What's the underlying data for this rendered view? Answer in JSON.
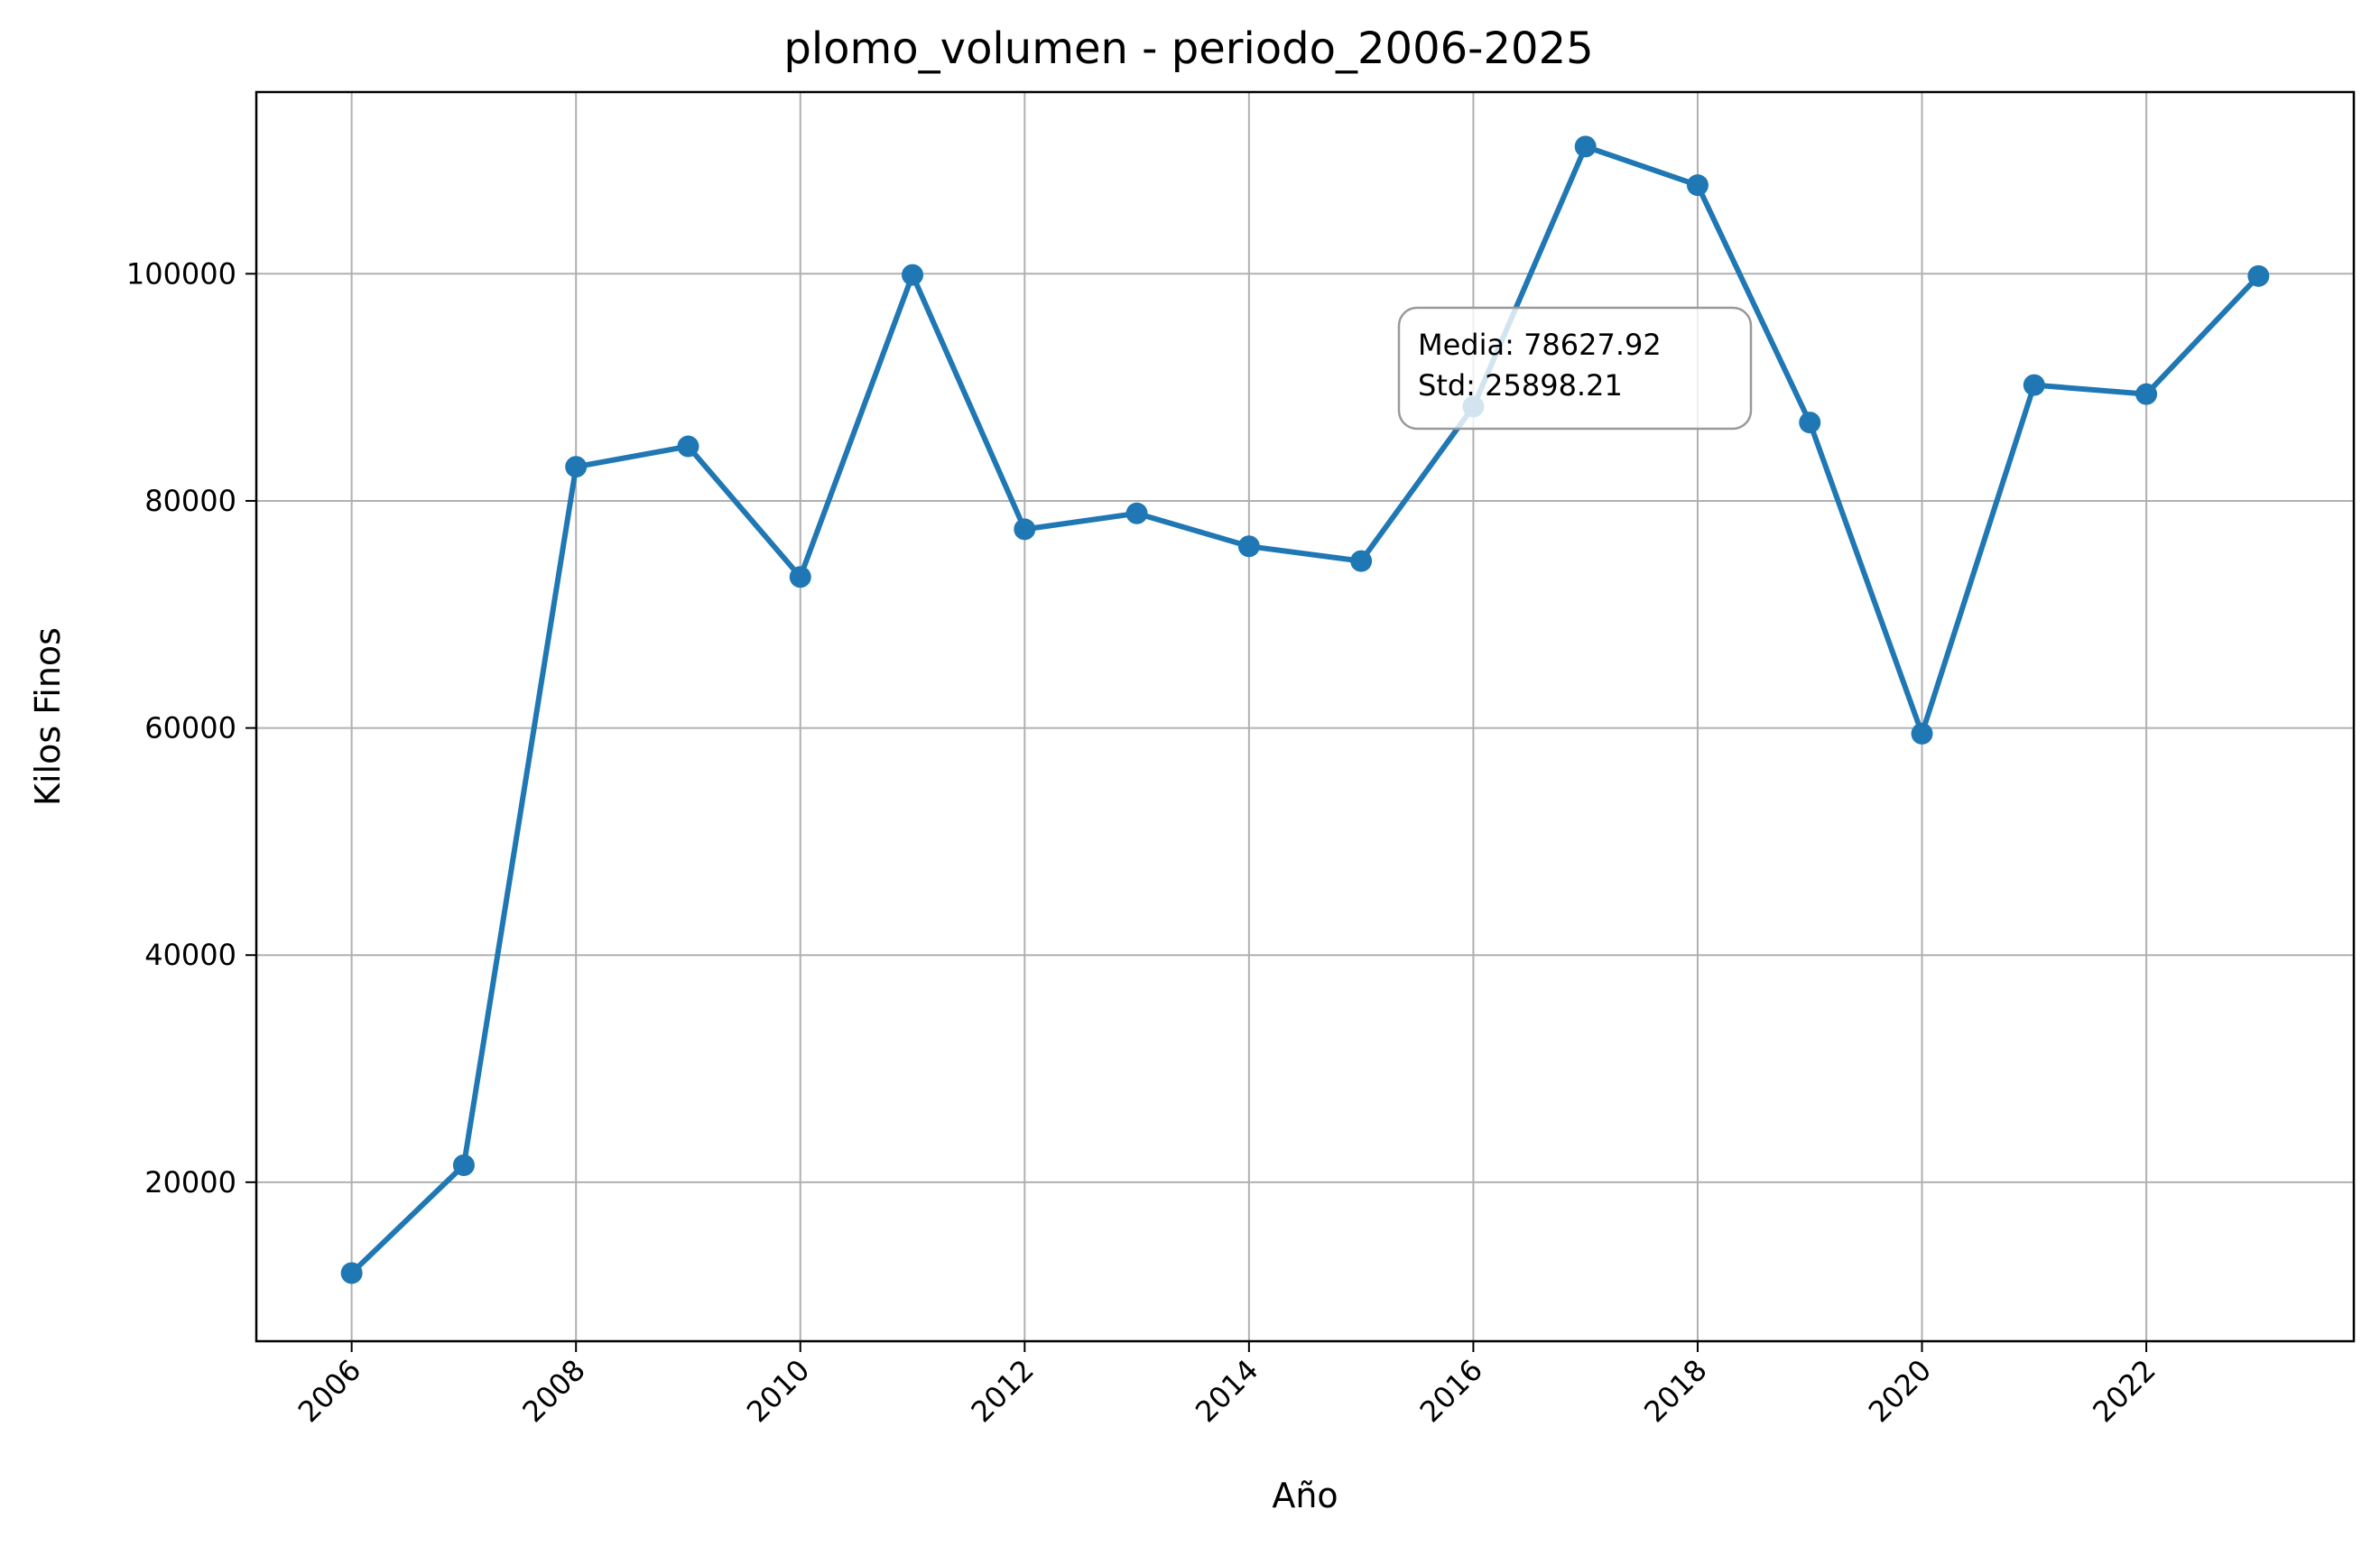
{
  "chart_data": {
    "type": "line",
    "title": "plomo_volumen - periodo_2006-2025",
    "xlabel": "Año",
    "ylabel": "Kilos Finos",
    "x": [
      2006,
      2007,
      2008,
      2009,
      2010,
      2011,
      2012,
      2013,
      2014,
      2015,
      2016,
      2017,
      2018,
      2019,
      2020,
      2021,
      2022,
      2023
    ],
    "series": [
      {
        "values": [
          12000,
          21500,
          83000,
          84800,
          73300,
          99900,
          77500,
          78900,
          76000,
          74700,
          88300,
          111200,
          107800,
          86900,
          59500,
          90200,
          89400,
          99800
        ],
        "color": "#1f77b4"
      }
    ],
    "xlim": [
      2005.15,
      2023.85
    ],
    "ylim": [
      6000,
      116000
    ],
    "xticks": [
      2006,
      2008,
      2010,
      2012,
      2014,
      2016,
      2018,
      2020,
      2022
    ],
    "yticks": [
      20000,
      40000,
      60000,
      80000,
      100000
    ],
    "grid": true,
    "annotation": {
      "lines": [
        "Media: 78627.92",
        "Std: 25898.21"
      ]
    }
  }
}
